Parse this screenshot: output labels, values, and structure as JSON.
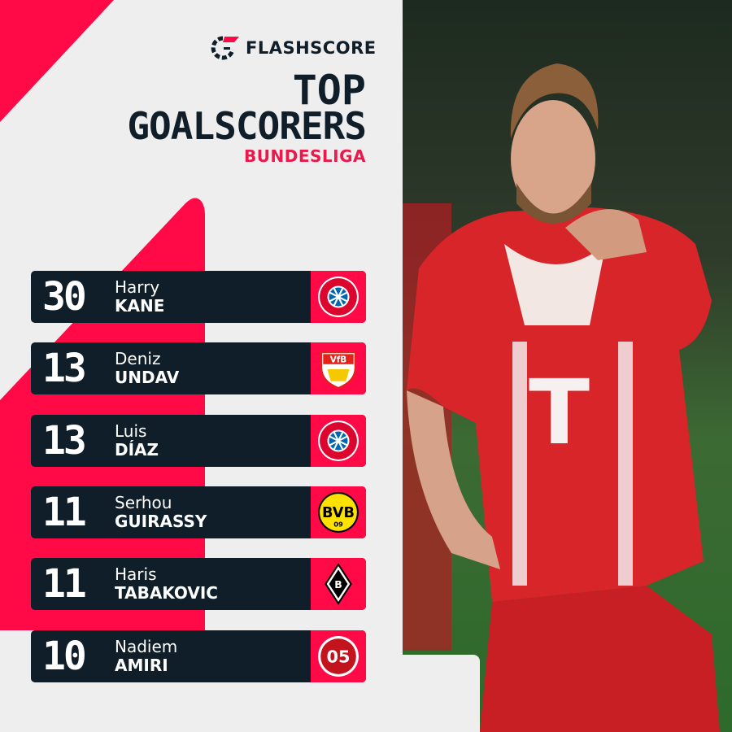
{
  "brand": {
    "name": "FLASHSCORE",
    "accent": "#ff0a47",
    "dark": "#0f1e28"
  },
  "header": {
    "title_line1": "TOP",
    "title_line2": "GOALSCORERS",
    "league": "BUNDESLIGA"
  },
  "rows": [
    {
      "goals": "30",
      "first": "Harry",
      "last": "KANE",
      "club_icon": "bayern-munich-crest"
    },
    {
      "goals": "13",
      "first": "Deniz",
      "last": "UNDAV",
      "club_icon": "vfb-stuttgart-crest"
    },
    {
      "goals": "13",
      "first": "Luis",
      "last": "DÍAZ",
      "club_icon": "bayern-munich-crest"
    },
    {
      "goals": "11",
      "first": "Serhou",
      "last": "GUIRASSY",
      "club_icon": "borussia-dortmund-crest"
    },
    {
      "goals": "11",
      "first": "Haris",
      "last": "TABAKOVIC",
      "club_icon": "borussia-monchengladbach-crest"
    },
    {
      "goals": "10",
      "first": "Nadiem",
      "last": "AMIRI",
      "club_icon": "mainz-05-crest"
    }
  ],
  "photo": {
    "subject": "player-celebration-photo"
  }
}
